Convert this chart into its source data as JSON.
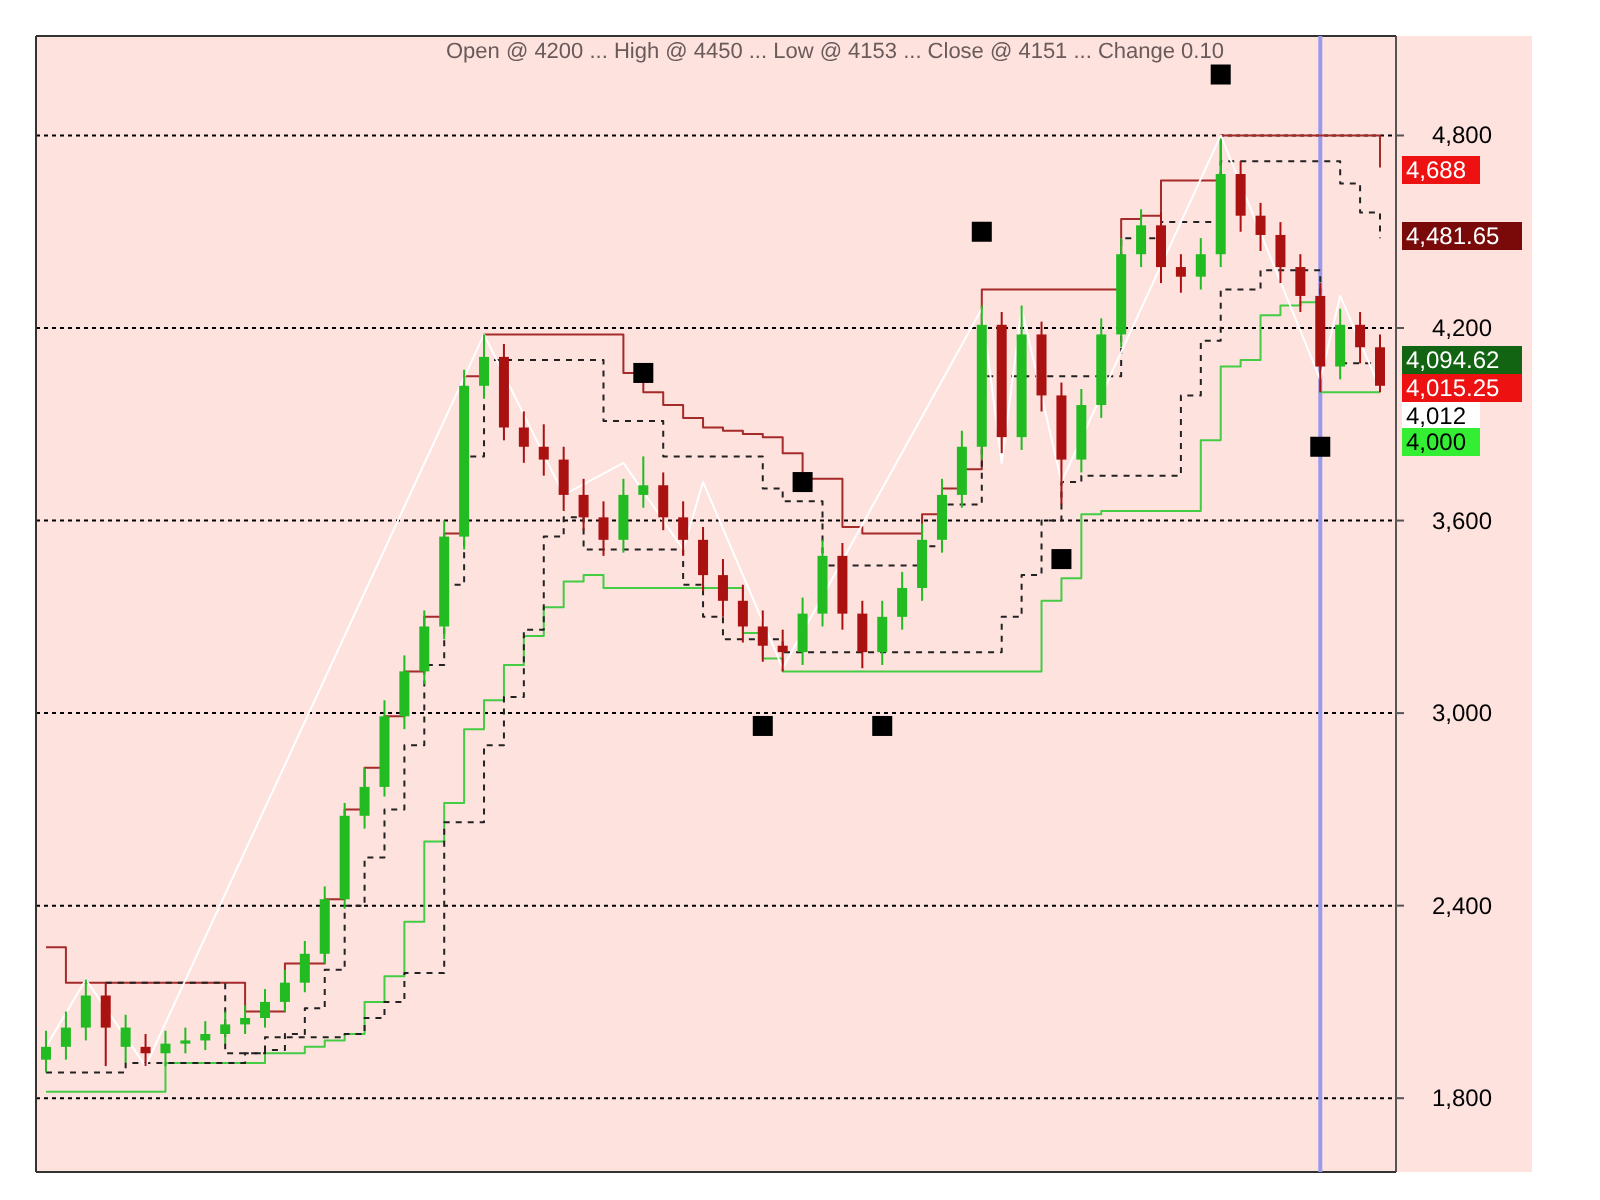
{
  "chart_data": {
    "type": "candlestick",
    "title": "Open @ 4200 ... High @ 4450 ... Low @ 4153 ... Close @ 4151 ... Change 0.10",
    "categories": [
      null,
      null,
      null,
      null,
      null,
      null,
      null,
      null,
      null,
      null,
      null,
      null,
      null,
      null,
      null,
      null,
      null,
      null,
      null,
      null,
      null,
      null,
      null,
      null,
      null,
      null,
      null,
      null,
      null,
      null,
      null,
      null,
      null,
      null,
      null,
      null,
      null,
      null,
      null,
      null,
      null,
      null,
      null,
      null,
      null,
      null,
      null,
      null,
      null,
      null,
      null,
      null,
      null,
      null,
      null,
      null,
      null,
      null,
      null,
      null,
      null,
      null,
      null,
      null,
      null,
      null,
      null,
      null
    ],
    "ohlc": [
      [
        1920,
        2010,
        1880,
        1960
      ],
      [
        1960,
        2070,
        1920,
        2020
      ],
      [
        2020,
        2170,
        1980,
        2120
      ],
      [
        2120,
        2160,
        1900,
        2020
      ],
      [
        1960,
        2060,
        1910,
        2020
      ],
      [
        1960,
        2000,
        1900,
        1940
      ],
      [
        1940,
        2010,
        1900,
        1970
      ],
      [
        1970,
        2020,
        1940,
        1980
      ],
      [
        1980,
        2040,
        1950,
        2000
      ],
      [
        2000,
        2070,
        1970,
        2030
      ],
      [
        2030,
        2090,
        2000,
        2050
      ],
      [
        2050,
        2140,
        2020,
        2100
      ],
      [
        2100,
        2200,
        2070,
        2160
      ],
      [
        2160,
        2290,
        2130,
        2250
      ],
      [
        2250,
        2460,
        2220,
        2420
      ],
      [
        2420,
        2720,
        2390,
        2680
      ],
      [
        2680,
        2830,
        2640,
        2770
      ],
      [
        2770,
        3040,
        2740,
        2990
      ],
      [
        2990,
        3180,
        2950,
        3130
      ],
      [
        3130,
        3320,
        3090,
        3270
      ],
      [
        3270,
        3600,
        3230,
        3550
      ],
      [
        3550,
        4070,
        3510,
        4020
      ],
      [
        4020,
        4180,
        3980,
        4110
      ],
      [
        4110,
        4150,
        3850,
        3890
      ],
      [
        3890,
        3940,
        3780,
        3830
      ],
      [
        3830,
        3900,
        3740,
        3790
      ],
      [
        3790,
        3830,
        3630,
        3680
      ],
      [
        3680,
        3730,
        3570,
        3610
      ],
      [
        3610,
        3660,
        3490,
        3540
      ],
      [
        3540,
        3730,
        3500,
        3680
      ],
      [
        3680,
        3800,
        3640,
        3710
      ],
      [
        3710,
        3750,
        3570,
        3610
      ],
      [
        3610,
        3660,
        3490,
        3540
      ],
      [
        3540,
        3580,
        3380,
        3430
      ],
      [
        3430,
        3480,
        3300,
        3350
      ],
      [
        3350,
        3400,
        3220,
        3270
      ],
      [
        3270,
        3320,
        3160,
        3210
      ],
      [
        3210,
        3260,
        3130,
        3190
      ],
      [
        3190,
        3360,
        3150,
        3310
      ],
      [
        3310,
        3540,
        3270,
        3490
      ],
      [
        3490,
        3530,
        3260,
        3310
      ],
      [
        3310,
        3350,
        3140,
        3190
      ],
      [
        3190,
        3350,
        3150,
        3300
      ],
      [
        3300,
        3440,
        3260,
        3390
      ],
      [
        3390,
        3590,
        3350,
        3540
      ],
      [
        3540,
        3730,
        3500,
        3680
      ],
      [
        3680,
        3880,
        3640,
        3830
      ],
      [
        3830,
        4270,
        3790,
        4210
      ],
      [
        4210,
        4250,
        3810,
        3860
      ],
      [
        3860,
        4270,
        3820,
        4180
      ],
      [
        4180,
        4220,
        3940,
        3990
      ],
      [
        3990,
        4030,
        3650,
        3790
      ],
      [
        3790,
        4010,
        3750,
        3960
      ],
      [
        3960,
        4230,
        3920,
        4180
      ],
      [
        4180,
        4480,
        4140,
        4430
      ],
      [
        4430,
        4570,
        4390,
        4520
      ],
      [
        4520,
        4560,
        4340,
        4390
      ],
      [
        4390,
        4430,
        4310,
        4360
      ],
      [
        4360,
        4480,
        4320,
        4430
      ],
      [
        4430,
        4790,
        4390,
        4680
      ],
      [
        4680,
        4720,
        4500,
        4550
      ],
      [
        4550,
        4590,
        4440,
        4490
      ],
      [
        4490,
        4530,
        4340,
        4390
      ],
      [
        4390,
        4430,
        4250,
        4300
      ],
      [
        4300,
        4340,
        4000,
        4080
      ],
      [
        4080,
        4260,
        4040,
        4210
      ],
      [
        4210,
        4250,
        4090,
        4140
      ],
      [
        4140,
        4180,
        4000,
        4020
      ]
    ],
    "colors": [
      "#22bb22",
      "#22bb22",
      "#22bb22",
      "#aa1111",
      "#22bb22",
      "#aa1111",
      "#22bb22",
      "#22bb22",
      "#22bb22",
      "#22bb22",
      "#22bb22",
      "#22bb22",
      "#22bb22",
      "#22bb22",
      "#22bb22",
      "#22bb22",
      "#22bb22",
      "#22bb22",
      "#22bb22",
      "#22bb22",
      "#22bb22",
      "#22bb22",
      "#22bb22",
      "#aa1111",
      "#aa1111",
      "#aa1111",
      "#aa1111",
      "#aa1111",
      "#aa1111",
      "#22bb22",
      "#22bb22",
      "#aa1111",
      "#aa1111",
      "#aa1111",
      "#aa1111",
      "#aa1111",
      "#aa1111",
      "#aa1111",
      "#22bb22",
      "#22bb22",
      "#aa1111",
      "#aa1111",
      "#22bb22",
      "#22bb22",
      "#22bb22",
      "#22bb22",
      "#22bb22",
      "#22bb22",
      "#aa1111",
      "#22bb22",
      "#aa1111",
      "#aa1111",
      "#22bb22",
      "#22bb22",
      "#22bb22",
      "#22bb22",
      "#aa1111",
      "#aa1111",
      "#22bb22",
      "#22bb22",
      "#aa1111",
      "#aa1111",
      "#aa1111",
      "#aa1111",
      "#aa1111",
      "#22bb22",
      "#aa1111",
      "#aa1111"
    ],
    "series": [
      {
        "type": "step",
        "color": "#a52a2a",
        "line_style": "solid",
        "values": [
          2270,
          2160,
          2160,
          2160,
          2160,
          2160,
          2160,
          2160,
          2160,
          2160,
          2070,
          2070,
          2220,
          2220,
          2420,
          2700,
          2830,
          2990,
          3130,
          3300,
          3560,
          4050,
          4180,
          4180,
          4180,
          4180,
          4180,
          4180,
          4180,
          4060,
          4000,
          3960,
          3920,
          3890,
          3880,
          3870,
          3860,
          3810,
          3730,
          3730,
          3580,
          3560,
          3560,
          3560,
          3620,
          3700,
          3760,
          4320,
          4320,
          4320,
          4320,
          4320,
          4320,
          4320,
          4540,
          4550,
          4660,
          4660,
          4660,
          4800,
          4800,
          4800,
          4800,
          4800,
          4800,
          4800,
          4800,
          4700
        ]
      },
      {
        "type": "step",
        "color": "#44cc44",
        "line_style": "solid",
        "values": [
          1820,
          1820,
          1820,
          1820,
          1820,
          1820,
          1910,
          1910,
          1910,
          1910,
          1910,
          1940,
          1940,
          1960,
          1980,
          2000,
          2100,
          2180,
          2350,
          2600,
          2720,
          2950,
          3040,
          3150,
          3240,
          3330,
          3410,
          3430,
          3390,
          3390,
          3390,
          3390,
          3390,
          3390,
          3390,
          3250,
          3170,
          3130,
          3130,
          3130,
          3130,
          3130,
          3130,
          3130,
          3130,
          3130,
          3130,
          3130,
          3130,
          3130,
          3350,
          3420,
          3620,
          3630,
          3630,
          3630,
          3630,
          3630,
          3850,
          4080,
          4100,
          4240,
          4270,
          4280,
          4000,
          4000,
          4000,
          4000
        ]
      },
      {
        "type": "step",
        "color": "#222222",
        "line_style": "dashed",
        "values": [
          null,
          null,
          null,
          2160,
          2160,
          2160,
          2160,
          2160,
          2160,
          1940,
          1940,
          1950,
          2000,
          2080,
          2200,
          2400,
          2550,
          2700,
          2900,
          3150,
          3400,
          3800,
          4100,
          4100,
          4100,
          4100,
          4100,
          4100,
          3910,
          3910,
          3910,
          3800,
          3800,
          3800,
          3800,
          3800,
          3700,
          3660,
          3660,
          3460,
          3460,
          3460,
          3460,
          3460,
          3520,
          3650,
          null,
          4050,
          null,
          4050,
          4050,
          4050,
          4050,
          4050,
          4480,
          4480,
          4530,
          4530,
          4530,
          4720,
          4720,
          4720,
          4720,
          4720,
          4720,
          4650,
          4560,
          4480
        ]
      },
      {
        "type": "step",
        "color": "#222222",
        "line_style": "dashed",
        "values": [
          1880,
          1880,
          1880,
          1880,
          1910,
          1910,
          1910,
          1910,
          1910,
          1910,
          1940,
          1990,
          1990,
          1990,
          1990,
          2000,
          2050,
          2100,
          2190,
          2190,
          2660,
          2660,
          2900,
          3050,
          3260,
          3550,
          3610,
          3510,
          3510,
          3510,
          3510,
          3510,
          3400,
          3300,
          3230,
          3230,
          3230,
          3190,
          3190,
          3190,
          3190,
          3190,
          3190,
          3190,
          3190,
          3190,
          3190,
          3190,
          3300,
          3430,
          3600,
          3720,
          3740,
          3740,
          3740,
          3740,
          3740,
          3990,
          4160,
          4320,
          4320,
          4380,
          4380,
          4380,
          4200,
          4090,
          4090,
          4090
        ]
      },
      {
        "type": "line",
        "color": "#ffffff",
        "line_style": "solid",
        "values": [
          1960,
          null,
          2170,
          null,
          null,
          1900,
          null,
          null,
          null,
          null,
          null,
          null,
          null,
          null,
          null,
          null,
          null,
          null,
          null,
          null,
          null,
          null,
          4180,
          null,
          null,
          null,
          3680,
          null,
          null,
          3780,
          null,
          null,
          3510,
          3720,
          null,
          null,
          null,
          3140,
          null,
          null,
          null,
          null,
          null,
          null,
          null,
          null,
          null,
          4260,
          3780,
          4260,
          null,
          3720,
          null,
          null,
          null,
          null,
          null,
          null,
          null,
          4800,
          null,
          null,
          null,
          null,
          4040,
          4300,
          null,
          4012
        ]
      },
      {
        "type": "scatter",
        "color": "#000000",
        "marker": "square",
        "values": [
          null,
          null,
          null,
          null,
          null,
          null,
          null,
          null,
          null,
          null,
          null,
          null,
          null,
          null,
          null,
          null,
          null,
          null,
          null,
          null,
          null,
          null,
          null,
          null,
          null,
          null,
          null,
          null,
          null,
          null,
          4060,
          null,
          null,
          null,
          null,
          null,
          2960,
          null,
          3720,
          null,
          null,
          null,
          2960,
          null,
          null,
          null,
          null,
          4500,
          null,
          null,
          null,
          3480,
          null,
          null,
          null,
          null,
          null,
          null,
          null,
          4990,
          null,
          null,
          null,
          null,
          3830,
          null,
          null,
          null
        ]
      }
    ],
    "ylim": [
      1570,
      5110
    ],
    "yticks": [
      {
        "value": 1800,
        "label": "1,800"
      },
      {
        "value": 2400,
        "label": "2,400"
      },
      {
        "value": 3000,
        "label": "3,000"
      },
      {
        "value": 3600,
        "label": "3,600"
      },
      {
        "value": 4200,
        "label": "4,200"
      },
      {
        "value": 4800,
        "label": "4,800"
      }
    ],
    "grid": "y",
    "tick_labels": "y",
    "annotations": [
      "4,688",
      "4,481.65",
      "4,094.62",
      "4,015.25",
      "4,012",
      "4,000"
    ]
  }
}
